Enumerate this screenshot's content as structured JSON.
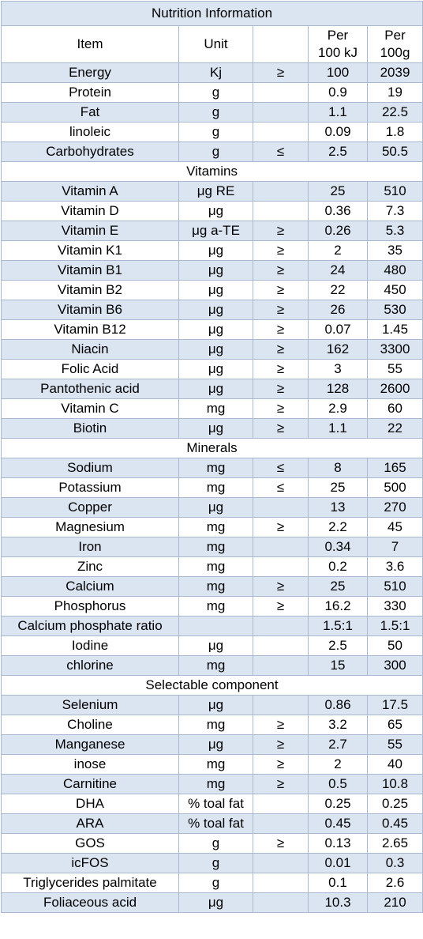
{
  "title": "Nutrition Information",
  "headers": {
    "item": "Item",
    "unit": "Unit",
    "op": "",
    "per100kj": [
      "Per",
      "100 kJ"
    ],
    "per100g": [
      "Per",
      "100g"
    ]
  },
  "rows": [
    {
      "type": "data",
      "item": "Energy",
      "unit": "Kj",
      "op": "≥",
      "per100kj": "100",
      "per100g": "2039"
    },
    {
      "type": "data",
      "item": "Protein",
      "unit": "g",
      "op": "",
      "per100kj": "0.9",
      "per100g": "19"
    },
    {
      "type": "data",
      "item": "Fat",
      "unit": "g",
      "op": "",
      "per100kj": "1.1",
      "per100g": "22.5"
    },
    {
      "type": "data",
      "item": "linoleic",
      "unit": "g",
      "op": "",
      "per100kj": "0.09",
      "per100g": "1.8"
    },
    {
      "type": "data",
      "item": "Carbohydrates",
      "unit": "g",
      "op": "≤",
      "per100kj": "2.5",
      "per100g": "50.5"
    },
    {
      "type": "section",
      "label": "Vitamins"
    },
    {
      "type": "data",
      "item": "Vitamin A",
      "unit": "μg  RE",
      "op": "",
      "per100kj": "25",
      "per100g": "510"
    },
    {
      "type": "data",
      "item": "Vitamin D",
      "unit": "μg",
      "op": "",
      "per100kj": "0.36",
      "per100g": "7.3"
    },
    {
      "type": "data",
      "item": "Vitamin E",
      "unit": "μg a-TE",
      "op": "≥",
      "per100kj": "0.26",
      "per100g": "5.3"
    },
    {
      "type": "data",
      "item": "Vitamin K1",
      "unit": "μg",
      "op": "≥",
      "per100kj": "2",
      "per100g": "35"
    },
    {
      "type": "data",
      "item": "Vitamin B1",
      "unit": "μg",
      "op": "≥",
      "per100kj": "24",
      "per100g": "480"
    },
    {
      "type": "data",
      "item": "Vitamin B2",
      "unit": "μg",
      "op": "≥",
      "per100kj": "22",
      "per100g": "450"
    },
    {
      "type": "data",
      "item": "Vitamin B6",
      "unit": "μg",
      "op": "≥",
      "per100kj": "26",
      "per100g": "530"
    },
    {
      "type": "data",
      "item": "Vitamin B12",
      "unit": "μg",
      "op": "≥",
      "per100kj": "0.07",
      "per100g": "1.45"
    },
    {
      "type": "data",
      "item": "Niacin",
      "unit": "μg",
      "op": "≥",
      "per100kj": "162",
      "per100g": "3300"
    },
    {
      "type": "data",
      "item": "Folic Acid",
      "unit": "μg",
      "op": "≥",
      "per100kj": "3",
      "per100g": "55"
    },
    {
      "type": "data",
      "item": "Pantothenic acid",
      "unit": "μg",
      "op": "≥",
      "per100kj": "128",
      "per100g": "2600"
    },
    {
      "type": "data",
      "item": "Vitamin C",
      "unit": "mg",
      "op": "≥",
      "per100kj": "2.9",
      "per100g": "60"
    },
    {
      "type": "data",
      "item": "Biotin",
      "unit": "μg",
      "op": "≥",
      "per100kj": "1.1",
      "per100g": "22"
    },
    {
      "type": "section",
      "label": "Minerals"
    },
    {
      "type": "data",
      "item": "Sodium",
      "unit": "mg",
      "op": "≤",
      "per100kj": "8",
      "per100g": "165"
    },
    {
      "type": "data",
      "item": "Potassium",
      "unit": "mg",
      "op": "≤",
      "per100kj": "25",
      "per100g": "500"
    },
    {
      "type": "data",
      "item": "Copper",
      "unit": "μg",
      "op": "",
      "per100kj": "13",
      "per100g": "270"
    },
    {
      "type": "data",
      "item": "Magnesium",
      "unit": "mg",
      "op": "≥",
      "per100kj": "2.2",
      "per100g": "45"
    },
    {
      "type": "data",
      "item": "Iron",
      "unit": "mg",
      "op": "",
      "per100kj": "0.34",
      "per100g": "7"
    },
    {
      "type": "data",
      "item": "Zinc",
      "unit": "mg",
      "op": "",
      "per100kj": "0.2",
      "per100g": "3.6"
    },
    {
      "type": "data",
      "item": "Calcium",
      "unit": "mg",
      "op": "≥",
      "per100kj": "25",
      "per100g": "510"
    },
    {
      "type": "data",
      "item": "Phosphorus",
      "unit": "mg",
      "op": "≥",
      "per100kj": "16.2",
      "per100g": "330"
    },
    {
      "type": "data",
      "item": "Calcium phosphate ratio",
      "unit": "",
      "op": "",
      "per100kj": "1.5:1",
      "per100g": "1.5:1"
    },
    {
      "type": "data",
      "item": "Iodine",
      "unit": "μg",
      "op": "",
      "per100kj": "2.5",
      "per100g": "50"
    },
    {
      "type": "data",
      "item": "chlorine",
      "unit": "mg",
      "op": "",
      "per100kj": "15",
      "per100g": "300"
    },
    {
      "type": "section",
      "label": "Selectable component"
    },
    {
      "type": "data",
      "item": "Selenium",
      "unit": "μg",
      "op": "",
      "per100kj": "0.86",
      "per100g": "17.5"
    },
    {
      "type": "data",
      "item": "Choline",
      "unit": "mg",
      "op": "≥",
      "per100kj": "3.2",
      "per100g": "65"
    },
    {
      "type": "data",
      "item": "Manganese",
      "unit": "μg",
      "op": "≥",
      "per100kj": "2.7",
      "per100g": "55"
    },
    {
      "type": "data",
      "item": "inose",
      "unit": "mg",
      "op": "≥",
      "per100kj": "2",
      "per100g": "40"
    },
    {
      "type": "data",
      "item": "Carnitine",
      "unit": "mg",
      "op": "≥",
      "per100kj": "0.5",
      "per100g": "10.8"
    },
    {
      "type": "data",
      "item": "DHA",
      "unit": "% toal fat",
      "op": "",
      "per100kj": "0.25",
      "per100g": "0.25"
    },
    {
      "type": "data",
      "item": "ARA",
      "unit": "% toal fat",
      "op": "",
      "per100kj": "0.45",
      "per100g": "0.45"
    },
    {
      "type": "data",
      "item": "GOS",
      "unit": "g",
      "op": "≥",
      "per100kj": "0.13",
      "per100g": "2.65"
    },
    {
      "type": "data",
      "item": "icFOS",
      "unit": "g",
      "op": "",
      "per100kj": "0.01",
      "per100g": "0.3"
    },
    {
      "type": "data",
      "item": "Triglycerides palmitate",
      "unit": "g",
      "op": "",
      "per100kj": "0.1",
      "per100g": "2.6"
    },
    {
      "type": "data",
      "item": "Foliaceous acid",
      "unit": "μg",
      "op": "",
      "per100kj": "10.3",
      "per100g": "210"
    }
  ],
  "colors": {
    "band": "#dbe5f1",
    "border": "#a9b9cf",
    "plain": "#ffffff"
  }
}
